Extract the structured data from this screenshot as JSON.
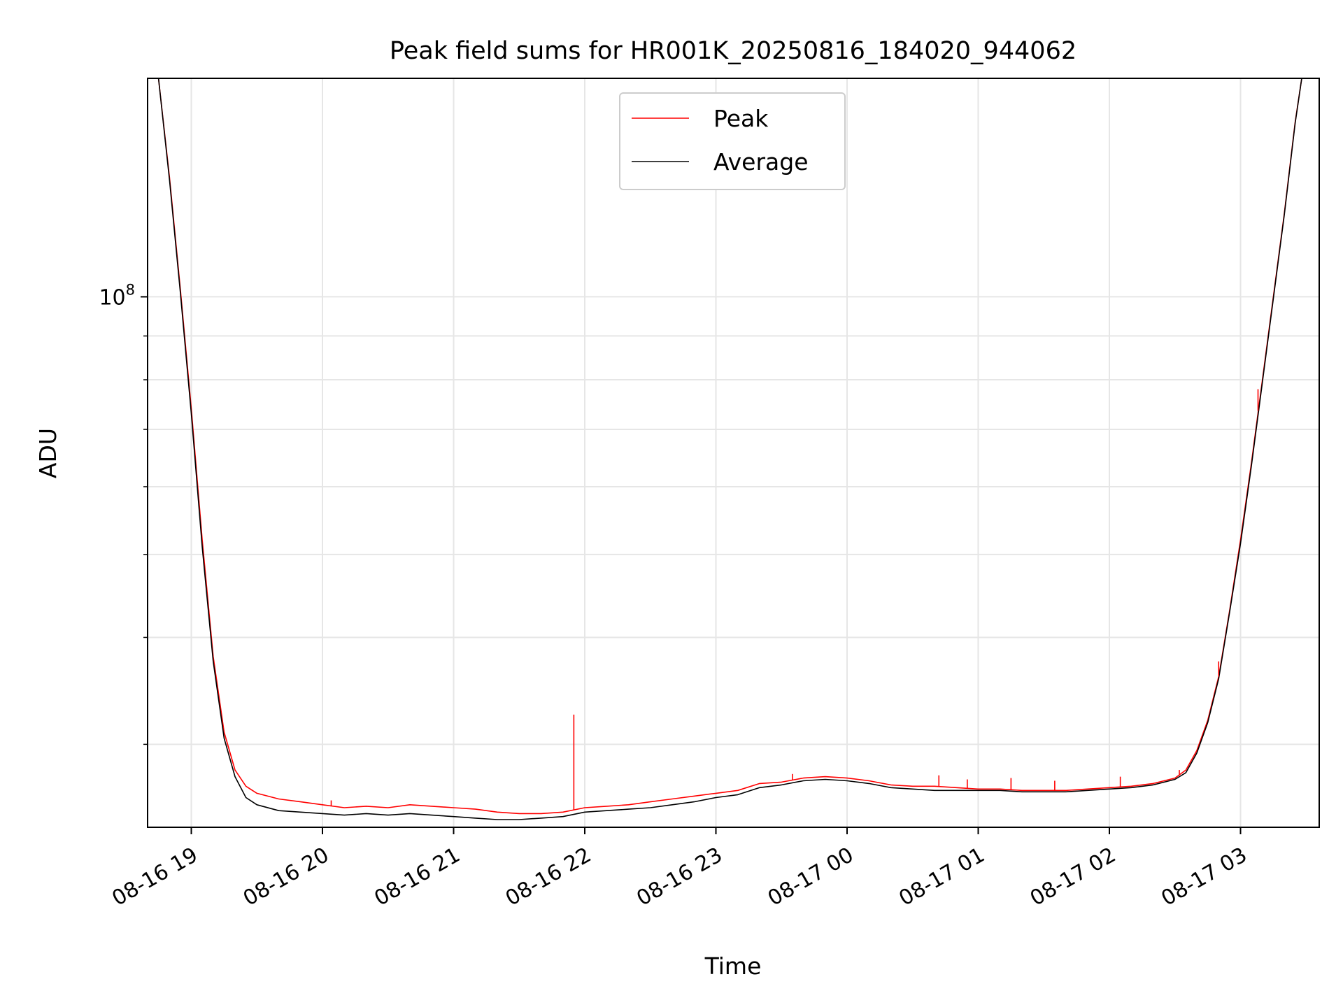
{
  "chart_data": {
    "type": "line",
    "title": "Peak field sums for HR001K_20250816_184020_944062",
    "xlabel": "Time",
    "ylabel": "ADU",
    "y_scale": "log",
    "ylim": [
      24000000,
      180000000
    ],
    "xlim": [
      "2025-08-16 18:40",
      "2025-08-17 03:36"
    ],
    "x_ticks": [
      "08-16 19",
      "08-16 20",
      "08-16 21",
      "08-16 22",
      "08-16 23",
      "08-17 00",
      "08-17 01",
      "08-17 02",
      "08-17 03"
    ],
    "y_major_tick": {
      "base": "10",
      "exponent": "8"
    },
    "grid": true,
    "legend_position": "upper center",
    "series": [
      {
        "name": "Peak",
        "color": "#ff0000",
        "x": [
          "2025-08-16 18:45",
          "2025-08-16 18:50",
          "2025-08-16 18:55",
          "2025-08-16 19:00",
          "2025-08-16 19:05",
          "2025-08-16 19:10",
          "2025-08-16 19:15",
          "2025-08-16 19:20",
          "2025-08-16 19:25",
          "2025-08-16 19:30",
          "2025-08-16 19:40",
          "2025-08-16 19:50",
          "2025-08-16 20:00",
          "2025-08-16 20:10",
          "2025-08-16 20:20",
          "2025-08-16 20:30",
          "2025-08-16 20:40",
          "2025-08-16 20:50",
          "2025-08-16 21:00",
          "2025-08-16 21:10",
          "2025-08-16 21:20",
          "2025-08-16 21:30",
          "2025-08-16 21:40",
          "2025-08-16 21:50",
          "2025-08-16 22:00",
          "2025-08-16 22:10",
          "2025-08-16 22:20",
          "2025-08-16 22:30",
          "2025-08-16 22:40",
          "2025-08-16 22:50",
          "2025-08-16 23:00",
          "2025-08-16 23:10",
          "2025-08-16 23:20",
          "2025-08-16 23:30",
          "2025-08-16 23:40",
          "2025-08-16 23:50",
          "2025-08-17 00:00",
          "2025-08-17 00:10",
          "2025-08-17 00:20",
          "2025-08-17 00:30",
          "2025-08-17 00:40",
          "2025-08-17 00:50",
          "2025-08-17 01:00",
          "2025-08-17 01:10",
          "2025-08-17 01:20",
          "2025-08-17 01:30",
          "2025-08-17 01:40",
          "2025-08-17 01:50",
          "2025-08-17 02:00",
          "2025-08-17 02:10",
          "2025-08-17 02:20",
          "2025-08-17 02:30",
          "2025-08-17 02:35",
          "2025-08-17 02:40",
          "2025-08-17 02:45",
          "2025-08-17 02:50",
          "2025-08-17 02:55",
          "2025-08-17 03:00",
          "2025-08-17 03:05",
          "2025-08-17 03:10",
          "2025-08-17 03:15",
          "2025-08-17 03:20",
          "2025-08-17 03:25",
          "2025-08-17 03:28"
        ],
        "values": [
          180000000,
          138000000,
          102000000,
          74000000,
          52000000,
          38000000,
          31000000,
          28000000,
          26800000,
          26300000,
          25900000,
          25700000,
          25500000,
          25300000,
          25400000,
          25300000,
          25500000,
          25400000,
          25300000,
          25200000,
          25000000,
          24900000,
          24900000,
          25000000,
          25300000,
          25400000,
          25500000,
          25700000,
          25900000,
          26100000,
          26300000,
          26500000,
          27000000,
          27100000,
          27400000,
          27500000,
          27400000,
          27200000,
          26900000,
          26800000,
          26800000,
          26700000,
          26600000,
          26600000,
          26500000,
          26500000,
          26500000,
          26600000,
          26700000,
          26800000,
          27000000,
          27400000,
          28000000,
          29500000,
          32000000,
          36000000,
          43000000,
          52000000,
          64000000,
          80000000,
          100000000,
          125000000,
          160000000,
          180000000
        ]
      },
      {
        "name": "Average",
        "color": "#000000",
        "x": [
          "2025-08-16 18:45",
          "2025-08-16 18:50",
          "2025-08-16 18:55",
          "2025-08-16 19:00",
          "2025-08-16 19:05",
          "2025-08-16 19:10",
          "2025-08-16 19:15",
          "2025-08-16 19:20",
          "2025-08-16 19:25",
          "2025-08-16 19:30",
          "2025-08-16 19:40",
          "2025-08-16 19:50",
          "2025-08-16 20:00",
          "2025-08-16 20:10",
          "2025-08-16 20:20",
          "2025-08-16 20:30",
          "2025-08-16 20:40",
          "2025-08-16 20:50",
          "2025-08-16 21:00",
          "2025-08-16 21:10",
          "2025-08-16 21:20",
          "2025-08-16 21:30",
          "2025-08-16 21:40",
          "2025-08-16 21:50",
          "2025-08-16 22:00",
          "2025-08-16 22:10",
          "2025-08-16 22:20",
          "2025-08-16 22:30",
          "2025-08-16 22:40",
          "2025-08-16 22:50",
          "2025-08-16 23:00",
          "2025-08-16 23:10",
          "2025-08-16 23:20",
          "2025-08-16 23:30",
          "2025-08-16 23:40",
          "2025-08-16 23:50",
          "2025-08-17 00:00",
          "2025-08-17 00:10",
          "2025-08-17 00:20",
          "2025-08-17 00:30",
          "2025-08-17 00:40",
          "2025-08-17 00:50",
          "2025-08-17 01:00",
          "2025-08-17 01:10",
          "2025-08-17 01:20",
          "2025-08-17 01:30",
          "2025-08-17 01:40",
          "2025-08-17 01:50",
          "2025-08-17 02:00",
          "2025-08-17 02:10",
          "2025-08-17 02:20",
          "2025-08-17 02:30",
          "2025-08-17 02:35",
          "2025-08-17 02:40",
          "2025-08-17 02:45",
          "2025-08-17 02:50",
          "2025-08-17 02:55",
          "2025-08-17 03:00",
          "2025-08-17 03:05",
          "2025-08-17 03:10",
          "2025-08-17 03:15",
          "2025-08-17 03:20",
          "2025-08-17 03:25",
          "2025-08-17 03:28"
        ],
        "values": [
          180000000,
          137000000,
          101000000,
          73000000,
          51000000,
          37500000,
          30500000,
          27500000,
          26000000,
          25500000,
          25100000,
          25000000,
          24900000,
          24800000,
          24900000,
          24800000,
          24900000,
          24800000,
          24700000,
          24600000,
          24500000,
          24500000,
          24600000,
          24700000,
          25000000,
          25100000,
          25200000,
          25300000,
          25500000,
          25700000,
          26000000,
          26200000,
          26700000,
          26900000,
          27200000,
          27300000,
          27200000,
          27000000,
          26700000,
          26600000,
          26500000,
          26500000,
          26500000,
          26500000,
          26400000,
          26400000,
          26400000,
          26500000,
          26600000,
          26700000,
          26900000,
          27300000,
          27800000,
          29300000,
          31800000,
          35800000,
          42800000,
          51500000,
          63500000,
          79500000,
          99500000,
          124500000,
          159500000,
          180000000
        ]
      }
    ],
    "peak_spikes": [
      {
        "x": "2025-08-16 20:04",
        "value": 25800000
      },
      {
        "x": "2025-08-16 21:55",
        "value": 32500000
      },
      {
        "x": "2025-08-16 23:35",
        "value": 27700000
      },
      {
        "x": "2025-08-17 00:42",
        "value": 27600000
      },
      {
        "x": "2025-08-17 00:55",
        "value": 27300000
      },
      {
        "x": "2025-08-17 01:15",
        "value": 27400000
      },
      {
        "x": "2025-08-17 01:35",
        "value": 27200000
      },
      {
        "x": "2025-08-17 02:05",
        "value": 27500000
      },
      {
        "x": "2025-08-17 02:32",
        "value": 28000000
      },
      {
        "x": "2025-08-17 02:50",
        "value": 37500000
      },
      {
        "x": "2025-08-17 03:08",
        "value": 78000000
      }
    ]
  }
}
